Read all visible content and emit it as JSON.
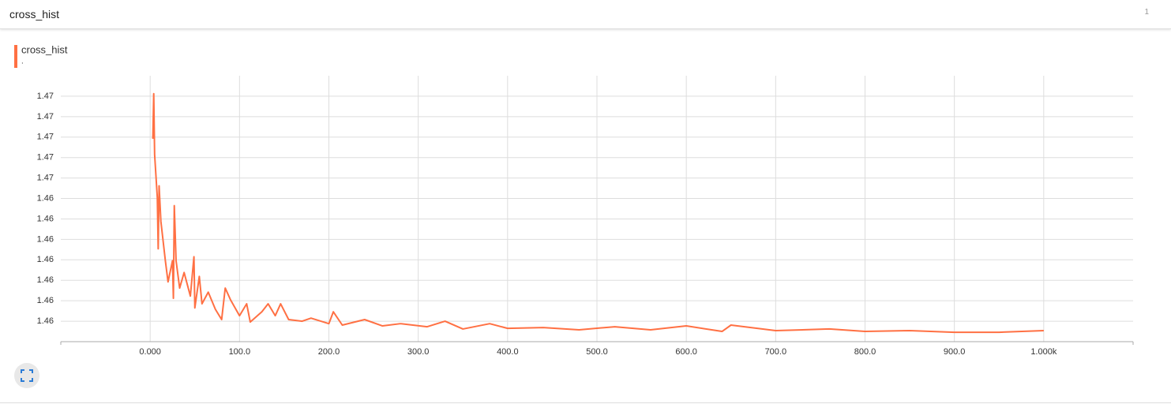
{
  "header": {
    "title": "cross_hist",
    "badge": "1"
  },
  "chart_data": {
    "type": "line",
    "legend_note": ".",
    "x": [
      3,
      4,
      5,
      8,
      9,
      10,
      12,
      17,
      20,
      25,
      26,
      27,
      29,
      33,
      38,
      45,
      49,
      50,
      55,
      58,
      65,
      73,
      80,
      84,
      90,
      100,
      108,
      112,
      125,
      132,
      140,
      146,
      155,
      170,
      180,
      200,
      205,
      215,
      240,
      260,
      280,
      310,
      330,
      350,
      380,
      400,
      440,
      480,
      520,
      560,
      600,
      640,
      650,
      700,
      760,
      800,
      850,
      900,
      950,
      1000
    ],
    "series": [
      {
        "name": "cross_hist",
        "color": "#ff7043",
        "values": [
          1.46692,
          1.46912,
          1.46615,
          1.46404,
          1.46154,
          1.46462,
          1.46288,
          1.46096,
          1.45992,
          1.46096,
          1.45912,
          1.46365,
          1.46096,
          1.45962,
          1.46038,
          1.45923,
          1.46115,
          1.45865,
          1.46019,
          1.45885,
          1.45942,
          1.45858,
          1.45808,
          1.45962,
          1.45904,
          1.45827,
          1.45885,
          1.45796,
          1.45846,
          1.45885,
          1.45827,
          1.45885,
          1.45808,
          1.458,
          1.45815,
          1.45788,
          1.45846,
          1.45781,
          1.45808,
          1.45777,
          1.45788,
          1.45773,
          1.458,
          1.45762,
          1.45788,
          1.45765,
          1.45769,
          1.45758,
          1.45773,
          1.45758,
          1.45777,
          1.4575,
          1.45781,
          1.45754,
          1.45762,
          1.4575,
          1.45754,
          1.45746,
          1.45746,
          1.45754
        ]
      }
    ],
    "xlim": [
      -100,
      1100
    ],
    "xticks": [
      {
        "value": 0,
        "label": "0.000"
      },
      {
        "value": 100,
        "label": "100.0"
      },
      {
        "value": 200,
        "label": "200.0"
      },
      {
        "value": 300,
        "label": "300.0"
      },
      {
        "value": 400,
        "label": "400.0"
      },
      {
        "value": 500,
        "label": "500.0"
      },
      {
        "value": 600,
        "label": "600.0"
      },
      {
        "value": 700,
        "label": "700.0"
      },
      {
        "value": 800,
        "label": "800.0"
      },
      {
        "value": 900,
        "label": "900.0"
      },
      {
        "value": 1000,
        "label": "1.000k"
      }
    ],
    "ylim": [
      1.457,
      1.47
    ],
    "yticks": [
      {
        "value": 1.458,
        "label": "1.46"
      },
      {
        "value": 1.459,
        "label": "1.46"
      },
      {
        "value": 1.46,
        "label": "1.46"
      },
      {
        "value": 1.461,
        "label": "1.46"
      },
      {
        "value": 1.462,
        "label": "1.46"
      },
      {
        "value": 1.463,
        "label": "1.46"
      },
      {
        "value": 1.464,
        "label": "1.46"
      },
      {
        "value": 1.465,
        "label": "1.47"
      },
      {
        "value": 1.466,
        "label": "1.47"
      },
      {
        "value": 1.467,
        "label": "1.47"
      },
      {
        "value": 1.468,
        "label": "1.47"
      },
      {
        "value": 1.469,
        "label": "1.47"
      }
    ],
    "grid": true
  }
}
